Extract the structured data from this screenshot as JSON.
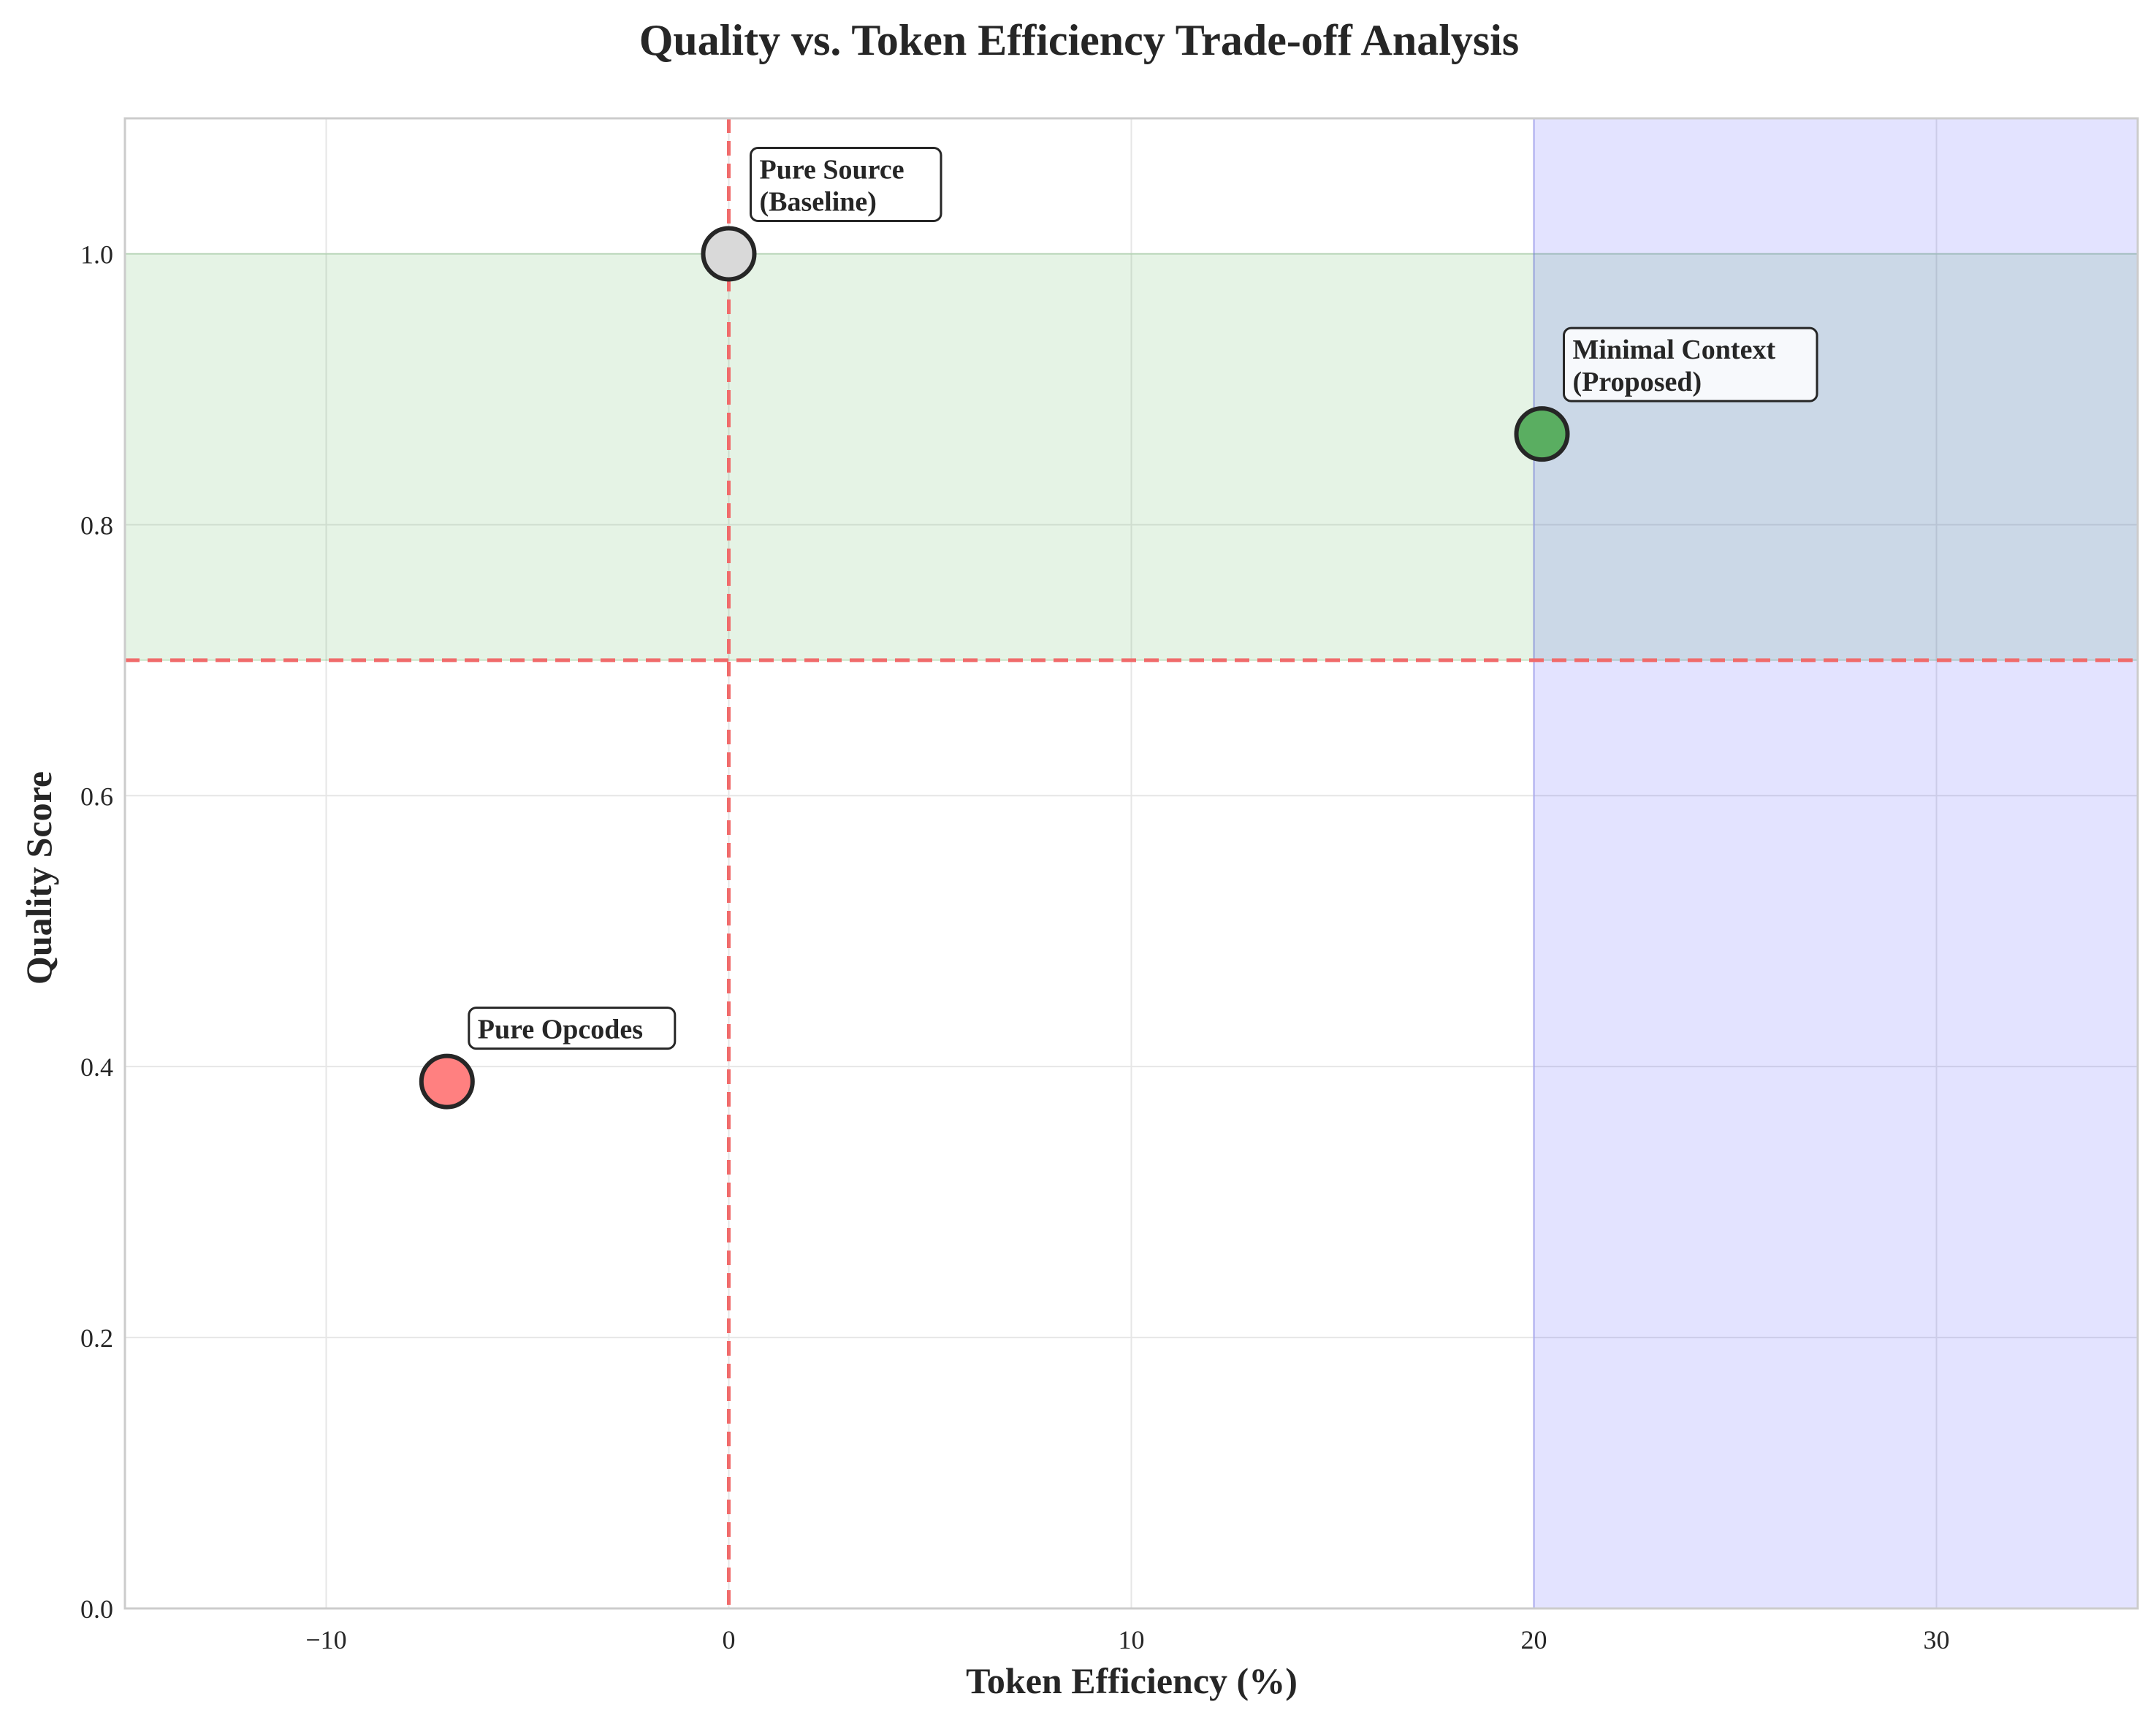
{
  "chart_data": {
    "type": "scatter",
    "title": "Quality vs. Token Efficiency Trade-off Analysis",
    "xlabel": "Token Efficiency (%)",
    "ylabel": "Quality Score",
    "xlim": [
      -15,
      35
    ],
    "ylim": [
      0.0,
      1.1
    ],
    "xticks": [
      -10,
      0,
      10,
      20,
      30
    ],
    "xtick_labels": [
      "−10",
      "0",
      "10",
      "20",
      "30"
    ],
    "yticks": [
      0.0,
      0.2,
      0.4,
      0.6,
      0.8,
      1.0
    ],
    "ytick_labels": [
      "0.0",
      "0.2",
      "0.4",
      "0.6",
      "0.8",
      "1.0"
    ],
    "grid": true,
    "regions": [
      {
        "x_range": [
          -15,
          35
        ],
        "y_range": [
          0.7,
          1.0
        ],
        "color": "#2ca02c",
        "opacity": 0.12
      },
      {
        "x_range": [
          20,
          35
        ],
        "y_range": [
          0.0,
          1.1
        ],
        "color": "#0000ff",
        "opacity": 0.11
      }
    ],
    "reference_lines": [
      {
        "orientation": "vertical",
        "value": 0,
        "color": "#f06b6b",
        "style": "dashed"
      },
      {
        "orientation": "horizontal",
        "value": 0.7,
        "color": "#f06b6b",
        "style": "dashed"
      }
    ],
    "points": [
      {
        "x": 0,
        "y": 1.0,
        "label_lines": [
          "Pure Source",
          "(Baseline)"
        ],
        "color": "#d9d9d9"
      },
      {
        "x": 20.2,
        "y": 0.867,
        "label_lines": [
          "Minimal Context",
          "(Proposed)"
        ],
        "color": "#5aae61"
      },
      {
        "x": -7,
        "y": 0.389,
        "label_lines": [
          "Pure Opcodes"
        ],
        "color": "#ff8080"
      }
    ]
  }
}
